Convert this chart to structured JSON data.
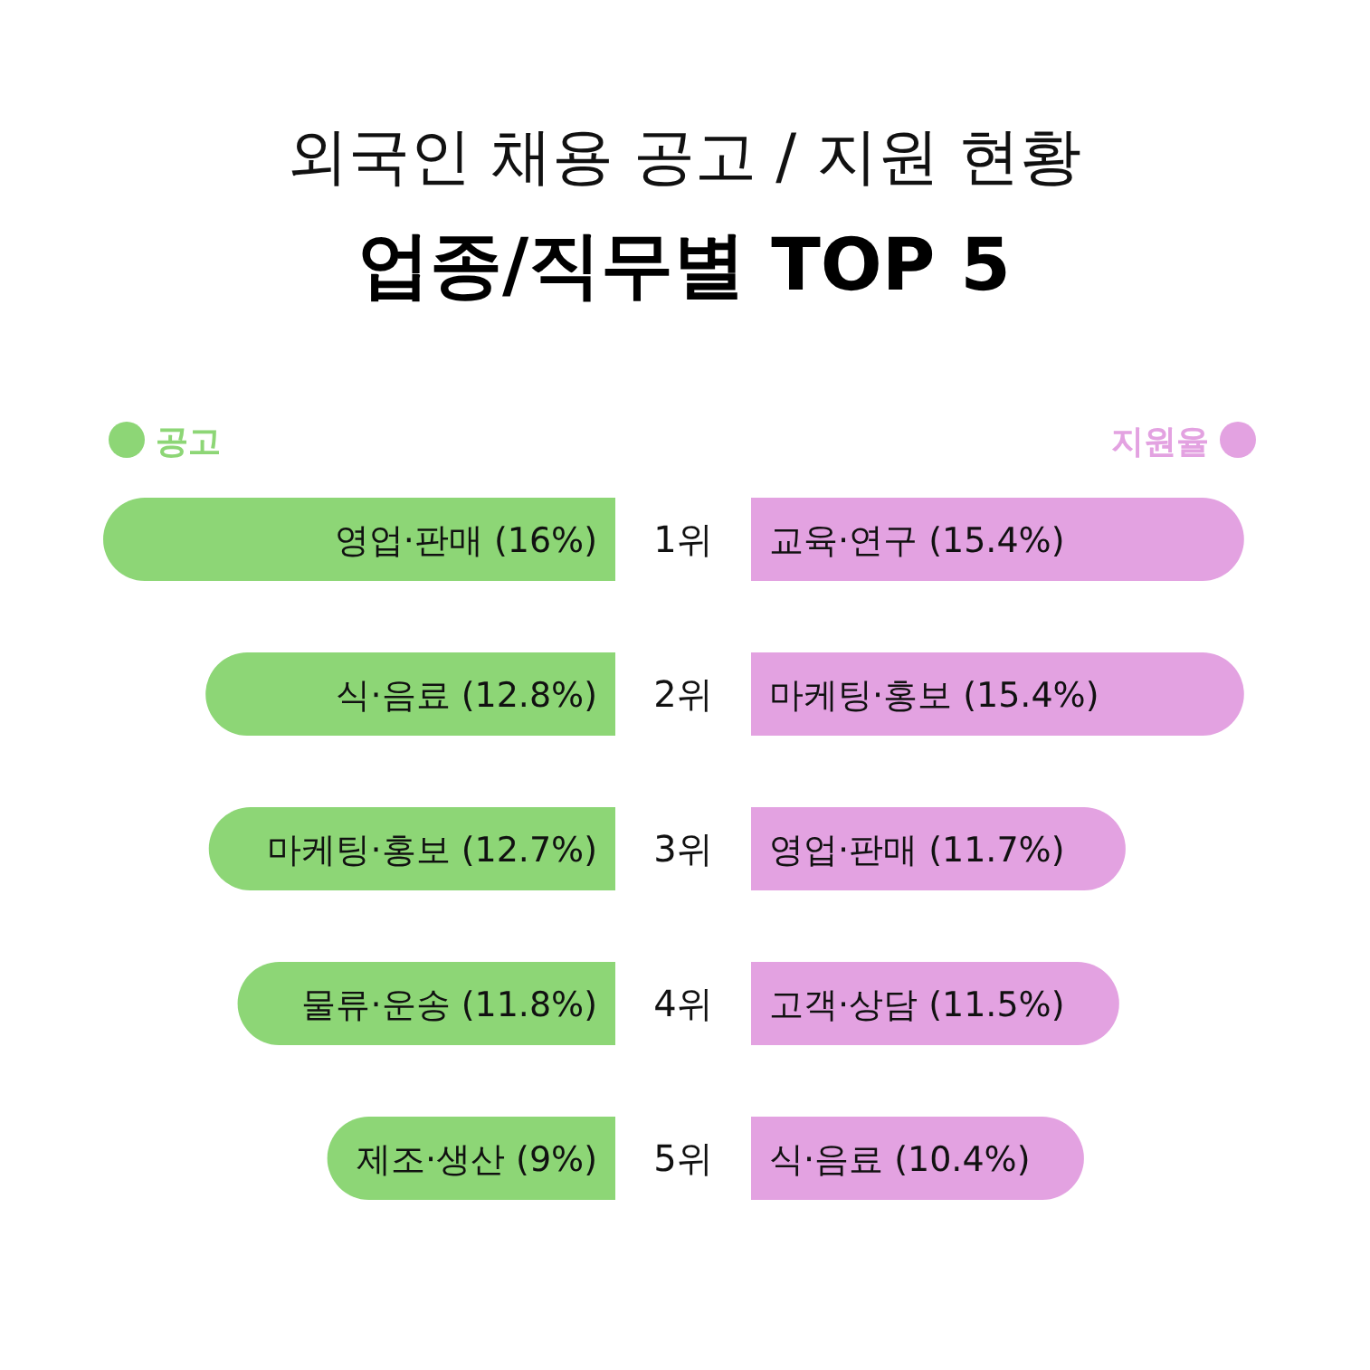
{
  "chart_data": [
    {
      "type": "bar",
      "orientation": "horizontal",
      "title": "외국인 채용 공고 / 지원 현황",
      "subtitle": "업종/직무별 TOP 5",
      "legend": "top left",
      "categories": [
        "1위",
        "2위",
        "3위",
        "4위",
        "5위"
      ],
      "series": [
        {
          "name": "공고",
          "color": "#8dd676",
          "values": [
            16,
            12.8,
            12.7,
            11.8,
            9
          ],
          "value_labels": [
            "영업·판매 (16%)",
            "식·음료 (12.8%)",
            "마케팅·홍보 (12.7%)",
            "물류·운송 (11.8%)",
            "제조·생산 (9%)"
          ]
        }
      ]
    },
    {
      "type": "bar",
      "orientation": "horizontal",
      "legend": "top right",
      "categories": [
        null,
        null,
        null,
        null,
        null
      ],
      "series": [
        {
          "name": "지원율",
          "color": "#e3a2e1",
          "values": [
            15.4,
            15.4,
            11.7,
            11.5,
            10.4
          ],
          "value_labels": [
            "교육·연구 (15.4%)",
            "마케팅·홍보 (15.4%)",
            "영업·판매 (11.7%)",
            "고객·상담 (11.5%)",
            "식·음료 (10.4%)"
          ]
        }
      ]
    }
  ]
}
